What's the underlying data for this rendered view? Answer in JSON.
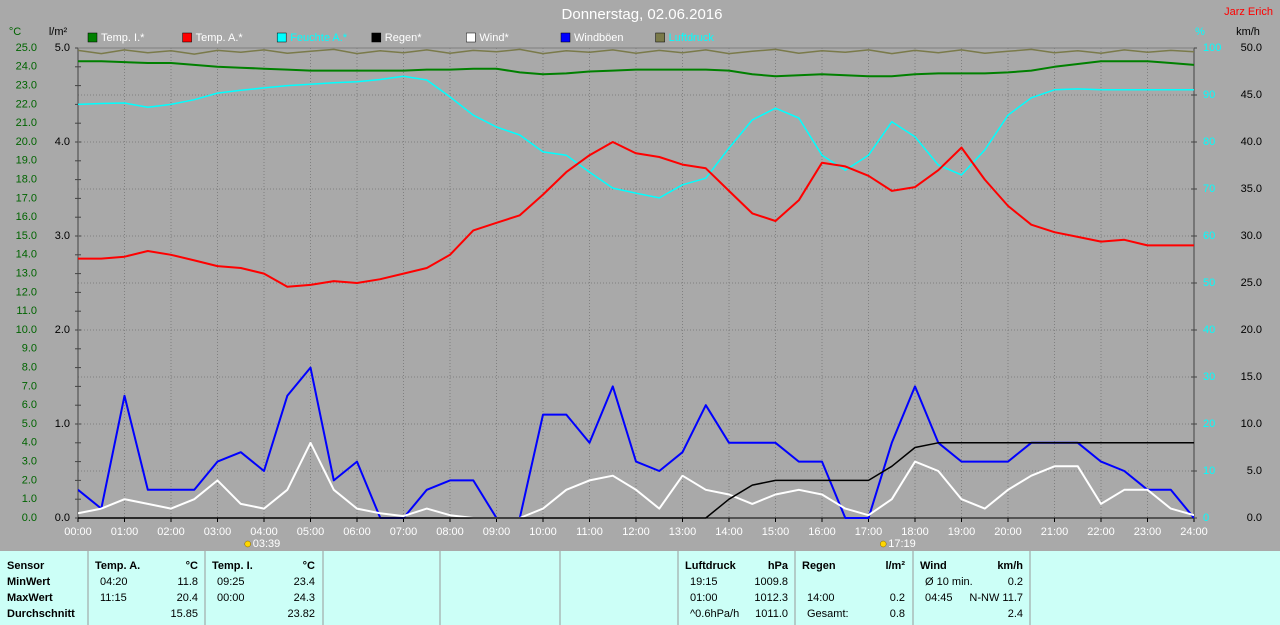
{
  "chart_data": {
    "type": "line",
    "title": "Donnerstag, 02.06.2016",
    "author": "Jarz Erich",
    "x": [
      0,
      0.5,
      1,
      1.5,
      2,
      2.5,
      3,
      3.5,
      4,
      4.5,
      5,
      5.5,
      6,
      6.5,
      7,
      7.5,
      8,
      8.5,
      9,
      9.5,
      10,
      10.5,
      11,
      11.5,
      12,
      12.5,
      13,
      13.5,
      14,
      14.5,
      15,
      15.5,
      16,
      16.5,
      17,
      17.5,
      18,
      18.5,
      19,
      19.5,
      20,
      20.5,
      21,
      21.5,
      22,
      22.5,
      23,
      23.5,
      24
    ],
    "xlim": [
      0,
      24
    ],
    "xticks": [
      {
        "value": 0,
        "label": "00:00"
      },
      {
        "value": 1,
        "label": "01:00"
      },
      {
        "value": 2,
        "label": "02:00"
      },
      {
        "value": 3,
        "label": "03:00"
      },
      {
        "value": 4,
        "label": "04:00"
      },
      {
        "value": 5,
        "label": "05:00"
      },
      {
        "value": 6,
        "label": "06:00"
      },
      {
        "value": 7,
        "label": "07:00"
      },
      {
        "value": 8,
        "label": "08:00"
      },
      {
        "value": 9,
        "label": "09:00"
      },
      {
        "value": 10,
        "label": "10:00"
      },
      {
        "value": 11,
        "label": "11:00"
      },
      {
        "value": 12,
        "label": "12:00"
      },
      {
        "value": 13,
        "label": "13:00"
      },
      {
        "value": 14,
        "label": "14:00"
      },
      {
        "value": 15,
        "label": "15:00"
      },
      {
        "value": 16,
        "label": "16:00"
      },
      {
        "value": 17,
        "label": "17:00"
      },
      {
        "value": 18,
        "label": "18:00"
      },
      {
        "value": 19,
        "label": "19:00"
      },
      {
        "value": 20,
        "label": "20:00"
      },
      {
        "value": 21,
        "label": "21:00"
      },
      {
        "value": 22,
        "label": "22:00"
      },
      {
        "value": 23,
        "label": "23:00"
      },
      {
        "value": 24,
        "label": "24:00"
      }
    ],
    "grid": true,
    "y_axes": [
      {
        "unit": "°C",
        "color": "#006400",
        "side": "left",
        "lim": [
          0,
          25
        ],
        "ticks": [
          {
            "value": 0,
            "label": "0.0"
          },
          {
            "value": 1,
            "label": "1.0"
          },
          {
            "value": 2,
            "label": "2.0"
          },
          {
            "value": 3,
            "label": "3.0"
          },
          {
            "value": 4,
            "label": "4.0"
          },
          {
            "value": 5,
            "label": "5.0"
          },
          {
            "value": 6,
            "label": "6.0"
          },
          {
            "value": 7,
            "label": "7.0"
          },
          {
            "value": 8,
            "label": "8.0"
          },
          {
            "value": 9,
            "label": "9.0"
          },
          {
            "value": 10,
            "label": "10.0"
          },
          {
            "value": 11,
            "label": "11.0"
          },
          {
            "value": 12,
            "label": "12.0"
          },
          {
            "value": 13,
            "label": "13.0"
          },
          {
            "value": 14,
            "label": "14.0"
          },
          {
            "value": 15,
            "label": "15.0"
          },
          {
            "value": 16,
            "label": "16.0"
          },
          {
            "value": 17,
            "label": "17.0"
          },
          {
            "value": 18,
            "label": "18.0"
          },
          {
            "value": 19,
            "label": "19.0"
          },
          {
            "value": 20,
            "label": "20.0"
          },
          {
            "value": 21,
            "label": "21.0"
          },
          {
            "value": 22,
            "label": "22.0"
          },
          {
            "value": 23,
            "label": "23.0"
          },
          {
            "value": 24,
            "label": "24.0"
          },
          {
            "value": 25,
            "label": "25.0"
          }
        ]
      },
      {
        "unit": "l/m²",
        "color": "#000000",
        "side": "left",
        "lim": [
          0,
          5
        ],
        "ticks": [
          {
            "value": 0,
            "label": "0.0"
          },
          {
            "value": 1,
            "label": "1.0"
          },
          {
            "value": 2,
            "label": "2.0"
          },
          {
            "value": 3,
            "label": "3.0"
          },
          {
            "value": 4,
            "label": "4.0"
          },
          {
            "value": 5,
            "label": "5.0"
          }
        ]
      },
      {
        "unit": "%",
        "color": "#00ffff",
        "side": "right",
        "lim": [
          0,
          100
        ],
        "ticks": [
          0,
          10,
          20,
          30,
          40,
          50,
          60,
          70,
          80,
          90,
          100
        ]
      },
      {
        "unit": "km/h",
        "color": "#000000",
        "side": "right",
        "lim": [
          0,
          50
        ],
        "ticks": [
          {
            "value": 0,
            "label": "0.0"
          },
          {
            "value": 5,
            "label": "5.0"
          },
          {
            "value": 10,
            "label": "10.0"
          },
          {
            "value": 15,
            "label": "15.0"
          },
          {
            "value": 20,
            "label": "20.0"
          },
          {
            "value": 25,
            "label": "25.0"
          },
          {
            "value": 30,
            "label": "30.0"
          },
          {
            "value": 35,
            "label": "35.0"
          },
          {
            "value": 40,
            "label": "40.0"
          },
          {
            "value": 45,
            "label": "45.0"
          },
          {
            "value": 50,
            "label": "50.0"
          }
        ]
      }
    ],
    "series": [
      {
        "name": "Temp. I.*",
        "color": "#008000",
        "legend_color": "#ffffff",
        "axis": 0,
        "values": [
          24.3,
          24.3,
          24.25,
          24.2,
          24.2,
          24.1,
          24.0,
          23.95,
          23.9,
          23.85,
          23.8,
          23.8,
          23.8,
          23.8,
          23.8,
          23.85,
          23.85,
          23.9,
          23.9,
          23.7,
          23.6,
          23.65,
          23.75,
          23.8,
          23.85,
          23.85,
          23.85,
          23.85,
          23.8,
          23.6,
          23.5,
          23.55,
          23.6,
          23.55,
          23.5,
          23.5,
          23.6,
          23.65,
          23.65,
          23.65,
          23.7,
          23.8,
          24.0,
          24.15,
          24.3,
          24.3,
          24.3,
          24.2,
          24.1
        ]
      },
      {
        "name": "Temp. A.*",
        "color": "#ff0000",
        "legend_color": "#ffffff",
        "axis": 0,
        "values": [
          13.8,
          13.8,
          13.9,
          14.2,
          14.0,
          13.7,
          13.4,
          13.3,
          13.0,
          12.3,
          12.4,
          12.6,
          12.5,
          12.7,
          13.0,
          13.3,
          14.0,
          15.3,
          15.7,
          16.1,
          17.2,
          18.4,
          19.3,
          20.0,
          19.4,
          19.2,
          18.8,
          18.6,
          17.4,
          16.2,
          15.8,
          16.9,
          18.9,
          18.7,
          18.2,
          17.4,
          17.6,
          18.5,
          19.7,
          18.0,
          16.6,
          15.6,
          15.2,
          14.95,
          14.7,
          14.8,
          14.5,
          14.5,
          14.5
        ]
      },
      {
        "name": "Feuchte A.*",
        "color": "#00ffff",
        "legend_color": "#00ffff",
        "axis": 2,
        "values": [
          88,
          88.2,
          88.3,
          87.4,
          88,
          89,
          90.4,
          91,
          91.5,
          92,
          92.3,
          92.6,
          92.8,
          93.3,
          94,
          93.2,
          89.6,
          85.7,
          83.2,
          81.5,
          77.9,
          77.2,
          73.6,
          70.2,
          69.1,
          68.1,
          70.9,
          72.3,
          78.7,
          84.7,
          87.2,
          85.1,
          77.2,
          74,
          77.2,
          84.3,
          81.1,
          75.1,
          73,
          78.3,
          85.7,
          89.4,
          91.1,
          91.3,
          91.1,
          91.1,
          91.1,
          91.1,
          91.1
        ]
      },
      {
        "name": "Regen*",
        "color": "#000000",
        "legend_color": "#ffffff",
        "axis": 1,
        "values": [
          0,
          0,
          0,
          0,
          0,
          0,
          0,
          0,
          0,
          0,
          0,
          0,
          0,
          0,
          0,
          0,
          0,
          0,
          0,
          0,
          0,
          0,
          0,
          0,
          0,
          0,
          0,
          0,
          0.2,
          0.35,
          0.4,
          0.4,
          0.4,
          0.4,
          0.4,
          0.55,
          0.75,
          0.8,
          0.8,
          0.8,
          0.8,
          0.8,
          0.8,
          0.8,
          0.8,
          0.8,
          0.8,
          0.8,
          0.8
        ]
      },
      {
        "name": "Wind*",
        "color": "#ffffff",
        "legend_color": "#ffffff",
        "axis": 3,
        "values": [
          0.5,
          1,
          2,
          1.5,
          1,
          2,
          4,
          1.5,
          1,
          3,
          8,
          3,
          1,
          0.5,
          0.2,
          1,
          0.3,
          0,
          0,
          0,
          1,
          3,
          4,
          4.5,
          3,
          1,
          4.5,
          3,
          2.5,
          1.5,
          2.5,
          3,
          2.5,
          1,
          0.3,
          2,
          6,
          5,
          2,
          1,
          3,
          4.5,
          5.5,
          5.5,
          1.5,
          3,
          3,
          1,
          0.3
        ]
      },
      {
        "name": "Windböen",
        "color": "#0000ff",
        "legend_color": "#ffffff",
        "axis": 3,
        "values": [
          3,
          1,
          13,
          3,
          3,
          3,
          6,
          7,
          5,
          13,
          16,
          4,
          6,
          0,
          0,
          3,
          4,
          4,
          0,
          0,
          11,
          11,
          8,
          14,
          6,
          5,
          7,
          12,
          8,
          8,
          8,
          6,
          6,
          0,
          0,
          8,
          14,
          8,
          6,
          6,
          6,
          8,
          8,
          8,
          6,
          5,
          3,
          3,
          0
        ]
      },
      {
        "name": "Luftdruck",
        "color": "#7a7a4a",
        "legend_color": "#00ffff",
        "axis": 2,
        "values": [
          99.5,
          98.8,
          99.6,
          99.0,
          99.4,
          98.7,
          99.5,
          99.1,
          99.6,
          98.9,
          99.3,
          99.7,
          98.8,
          99.4,
          99.0,
          99.6,
          98.9,
          99.5,
          99.2,
          99.7,
          98.8,
          99.4,
          99.1,
          99.6,
          98.9,
          99.5,
          99.0,
          99.6,
          98.8,
          99.3,
          99.7,
          98.9,
          99.4,
          99.1,
          99.6,
          98.8,
          99.5,
          99.0,
          99.6,
          98.9,
          99.3,
          99.7,
          99.0,
          99.4,
          98.9,
          99.6,
          99.1,
          99.5,
          99.2
        ]
      }
    ],
    "sun_markers": [
      {
        "x": 3.65,
        "label": "03:39"
      },
      {
        "x": 17.3167,
        "label": "17:19"
      }
    ]
  },
  "table": {
    "row_labels": [
      "Sensor",
      "MinWert",
      "MaxWert",
      "Durchschnitt"
    ],
    "columns": [
      {
        "name": "Temp. A.",
        "unit": "°C",
        "rows": [
          [
            "04:20",
            "11.8"
          ],
          [
            "11:15",
            "20.4"
          ],
          [
            null,
            "15.85"
          ]
        ]
      },
      {
        "name": "Temp. I.",
        "unit": "°C",
        "rows": [
          [
            "09:25",
            "23.4"
          ],
          [
            "00:00",
            "24.3"
          ],
          [
            null,
            "23.82"
          ]
        ]
      },
      {
        "name": "Luftdruck",
        "unit": "hPa",
        "rows": [
          [
            "19:15",
            "1009.8"
          ],
          [
            "01:00",
            "1012.3"
          ],
          [
            "^0.6hPa/h",
            "1011.0"
          ]
        ]
      },
      {
        "name": "Regen",
        "unit": "l/m²",
        "rows": [
          [
            null,
            null
          ],
          [
            "14:00",
            "0.2"
          ],
          [
            "Gesamt:",
            "0.8"
          ]
        ]
      },
      {
        "name": "Wind",
        "unit": "km/h",
        "rows": [
          [
            "Ø 10 min.",
            "0.2"
          ],
          [
            "04:45",
            "N-NW 11.7"
          ],
          [
            null,
            "2.4"
          ]
        ]
      }
    ]
  }
}
